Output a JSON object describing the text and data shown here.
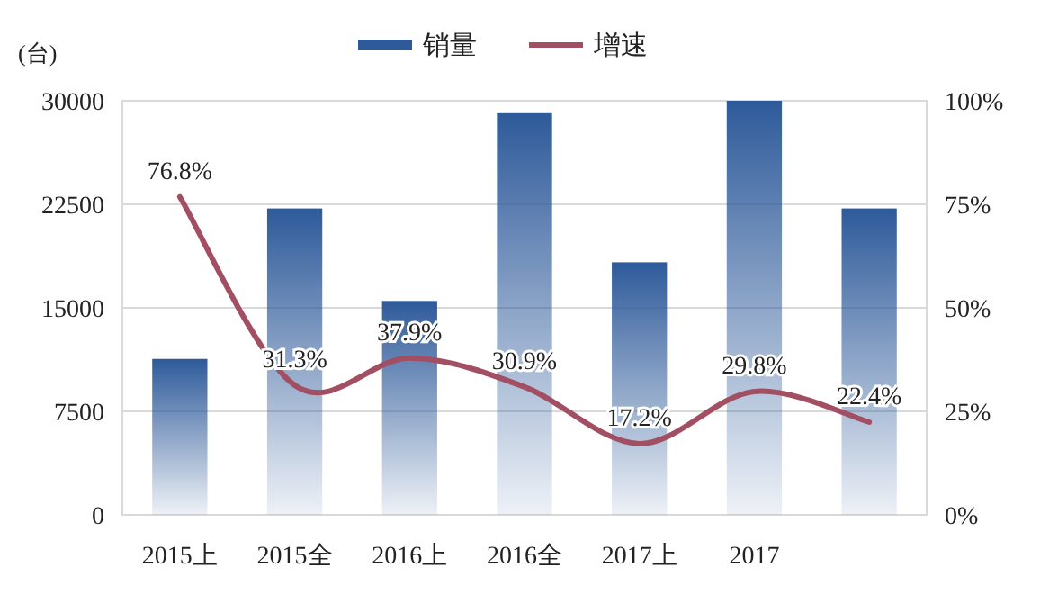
{
  "chart_data": {
    "type": "bar",
    "ylabel": "(台)",
    "legend": "top",
    "grid": "y",
    "categories": [
      "2015上",
      "2015全",
      "2016上",
      "2016全",
      "2017上",
      "2017",
      null
    ],
    "series": [
      {
        "name": "销量",
        "color": "#2e5a9a",
        "values": [
          11300,
          22200,
          15500,
          29100,
          18300,
          30000,
          22200
        ]
      },
      {
        "name": "增速",
        "type": "line",
        "axis": "y2",
        "color": "#a24f63",
        "values": [
          76.8,
          31.3,
          37.9,
          30.9,
          17.2,
          29.8,
          22.4
        ],
        "value_labels": [
          "76.8%",
          "31.3%",
          "37.9%",
          "30.9%",
          "17.2%",
          "29.8%",
          "22.4%"
        ]
      }
    ],
    "ylim": [
      0,
      30000
    ],
    "yticks": [
      0,
      7500,
      15000,
      22500,
      30000
    ],
    "y2lim": [
      0,
      100
    ],
    "y2ticks": [
      {
        "value": 0,
        "label": "0%"
      },
      {
        "value": 25,
        "label": "25%"
      },
      {
        "value": 50,
        "label": "50%"
      },
      {
        "value": 75,
        "label": "75%"
      },
      {
        "value": 100,
        "label": "100%"
      }
    ]
  }
}
